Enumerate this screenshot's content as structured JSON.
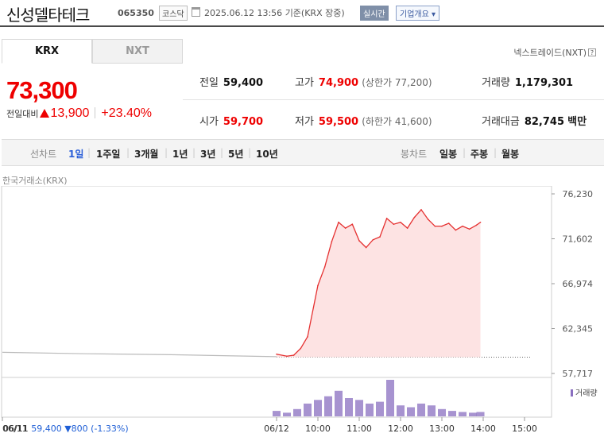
{
  "header": {
    "name": "신성델타테크",
    "code": "065350",
    "market": "코스닥",
    "datetime": "2025.06.12 13:56",
    "basis": "기준(KRX 장중)",
    "realtime_label": "실시간",
    "corp_overview": "기업개요",
    "corp_caret": "▾"
  },
  "tabs": {
    "krx": "KRX",
    "nxt": "NXT",
    "nxt_link": "넥스트레이드(NXT)",
    "help": "?"
  },
  "quote": {
    "price": "73,300",
    "change_label": "전일대비",
    "change": "13,900",
    "change_pct": "+23.40%"
  },
  "stats": {
    "prev_close_label": "전일",
    "prev_close": "59,400",
    "high_label": "고가",
    "high": "74,900",
    "upper_limit_label": "(상한가",
    "upper_limit": "77,200",
    "paren_close": ")",
    "volume_label": "거래량",
    "volume": "1,179,301",
    "open_label": "시가",
    "open": "59,700",
    "low_label": "저가",
    "low": "59,500",
    "lower_limit_label": "(하한가",
    "lower_limit": "41,600",
    "amount_label": "거래대금",
    "amount": "82,745",
    "amount_unit": "백만"
  },
  "period_tabs": {
    "line_chart": "선차트",
    "items": [
      "1일",
      "1주일",
      "3개월",
      "1년",
      "3년",
      "5년",
      "10년"
    ],
    "selected": "1일",
    "candle_chart": "봉차트",
    "candle_items": [
      "일봉",
      "주봉",
      "월봉"
    ],
    "separator": "|"
  },
  "chart_header": {
    "exchange": "한국거래소(KRX)"
  },
  "chart_data": {
    "type": "area",
    "y_ticks": [
      "76,230",
      "71,602",
      "66,974",
      "62,345",
      "57,717"
    ],
    "ylim": [
      57717,
      76230
    ],
    "x_ticks": [
      "06/11",
      "06/12",
      "10:00",
      "11:00",
      "12:00",
      "13:00",
      "14:00",
      "15:00"
    ],
    "series": [
      {
        "x": [
          "06/11 09:00",
          "06/11 11:00",
          "06/11 13:00",
          "06/11 15:30",
          "06/12 09:00",
          "06/12 09:15",
          "06/12 09:25",
          "06/12 09:35",
          "06/12 09:45",
          "06/12 10:00",
          "06/12 10:10",
          "06/12 10:20",
          "06/12 10:30",
          "06/12 10:40",
          "06/12 10:50",
          "06/12 11:00",
          "06/12 11:10",
          "06/12 11:20",
          "06/12 11:30",
          "06/12 11:40",
          "06/12 11:50",
          "06/12 12:00",
          "06/12 12:10",
          "06/12 12:20",
          "06/12 12:30",
          "06/12 12:40",
          "06/12 12:50",
          "06/12 13:00",
          "06/12 13:10",
          "06/12 13:20",
          "06/12 13:30",
          "06/12 13:40",
          "06/12 13:50",
          "06/12 13:56"
        ],
        "values": [
          59900,
          59750,
          59650,
          59450,
          59700,
          59500,
          59600,
          60300,
          61500,
          66800,
          68700,
          71300,
          73300,
          72700,
          73100,
          71400,
          70700,
          71500,
          71800,
          73700,
          73100,
          73300,
          72700,
          73800,
          74600,
          73600,
          72900,
          72900,
          73200,
          72500,
          72900,
          72600,
          73000,
          73300
        ]
      }
    ],
    "prev_close": 59400,
    "volume_label": "거래량",
    "volume": [
      {
        "t": "09:00",
        "v": 0.15
      },
      {
        "t": "09:15",
        "v": 0.1
      },
      {
        "t": "09:30",
        "v": 0.2
      },
      {
        "t": "09:45",
        "v": 0.35
      },
      {
        "t": "10:00",
        "v": 0.45
      },
      {
        "t": "10:15",
        "v": 0.55
      },
      {
        "t": "10:30",
        "v": 0.7
      },
      {
        "t": "10:45",
        "v": 0.5
      },
      {
        "t": "11:00",
        "v": 0.45
      },
      {
        "t": "11:15",
        "v": 0.35
      },
      {
        "t": "11:30",
        "v": 0.4
      },
      {
        "t": "11:45",
        "v": 1.0
      },
      {
        "t": "12:00",
        "v": 0.3
      },
      {
        "t": "12:15",
        "v": 0.25
      },
      {
        "t": "12:30",
        "v": 0.35
      },
      {
        "t": "12:45",
        "v": 0.3
      },
      {
        "t": "13:00",
        "v": 0.2
      },
      {
        "t": "13:15",
        "v": 0.15
      },
      {
        "t": "13:30",
        "v": 0.12
      },
      {
        "t": "13:45",
        "v": 0.1
      },
      {
        "t": "13:56",
        "v": 0.12
      }
    ]
  },
  "prev_day": {
    "date": "06/11",
    "close": "59,400",
    "arrow": "▼",
    "change": "800",
    "pct": "(-1.33%)"
  }
}
